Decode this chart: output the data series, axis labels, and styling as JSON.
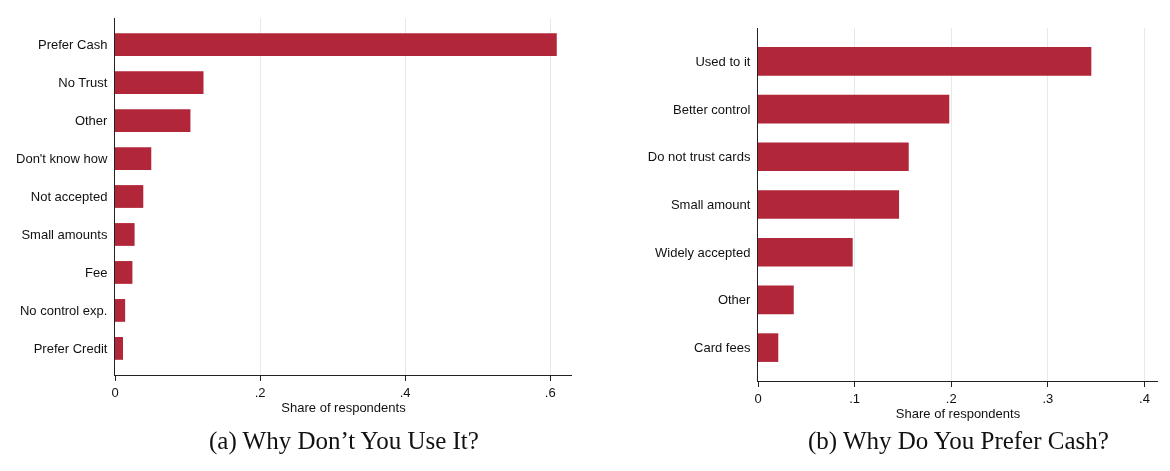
{
  "chart_data": [
    {
      "type": "bar",
      "orientation": "horizontal",
      "title": "(a) Why Don’t You Use It?",
      "xlabel": "Share of respondents",
      "categories": [
        "Prefer Cash",
        "No Trust",
        "Other",
        "Don't know how",
        "Not accepted",
        "Small amounts",
        "Fee",
        "No control exp.",
        "Prefer Credit"
      ],
      "values": [
        0.609,
        0.122,
        0.104,
        0.05,
        0.039,
        0.027,
        0.024,
        0.014,
        0.011
      ],
      "color": "#b22639",
      "xlim": [
        0,
        0.63
      ],
      "xticks": [
        {
          "value": 0,
          "label": "0"
        },
        {
          "value": 0.2,
          "label": ".2"
        },
        {
          "value": 0.4,
          "label": ".4"
        },
        {
          "value": 0.6,
          "label": ".6"
        }
      ],
      "grid": "x"
    },
    {
      "type": "bar",
      "orientation": "horizontal",
      "title": "(b) Why Do You Prefer Cash?",
      "xlabel": "Share of respondents",
      "categories": [
        "Used to it",
        "Better control",
        "Do not trust cards",
        "Small amount",
        "Widely accepted",
        "Other",
        "Card fees"
      ],
      "values": [
        0.345,
        0.198,
        0.156,
        0.146,
        0.098,
        0.037,
        0.021
      ],
      "color": "#b22639",
      "xlim": [
        0,
        0.414
      ],
      "xticks": [
        {
          "value": 0,
          "label": "0"
        },
        {
          "value": 0.1,
          "label": ".1"
        },
        {
          "value": 0.2,
          "label": ".2"
        },
        {
          "value": 0.3,
          "label": ".3"
        },
        {
          "value": 0.4,
          "label": ".4"
        }
      ],
      "grid": "x"
    }
  ]
}
